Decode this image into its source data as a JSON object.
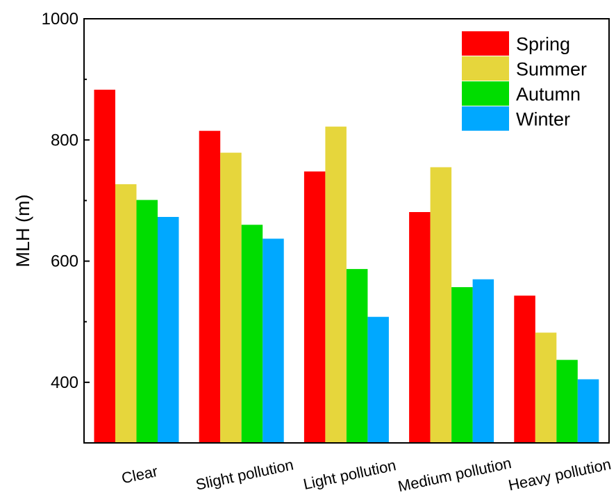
{
  "chart_data": {
    "type": "bar",
    "title": "",
    "xlabel": "",
    "ylabel": "MLH (m)",
    "ylim": [
      300,
      1000
    ],
    "yticks": [
      "400",
      "600",
      "800",
      "1000"
    ],
    "grid": false,
    "legend_position": "top-right",
    "categories": [
      "Clear",
      "Slight pollution",
      "Light pollution",
      "Medium pollution",
      "Heavy pollution"
    ],
    "series": [
      {
        "name": "Spring",
        "color": "#ff0000",
        "values": [
          883,
          815,
          748,
          681,
          543
        ]
      },
      {
        "name": "Summer",
        "color": "#e6d63c",
        "values": [
          727,
          779,
          822,
          755,
          482
        ]
      },
      {
        "name": "Autumn",
        "color": "#00dd00",
        "values": [
          701,
          660,
          587,
          557,
          437
        ]
      },
      {
        "name": "Winter",
        "color": "#00a8ff",
        "values": [
          673,
          637,
          508,
          570,
          405
        ]
      }
    ]
  }
}
